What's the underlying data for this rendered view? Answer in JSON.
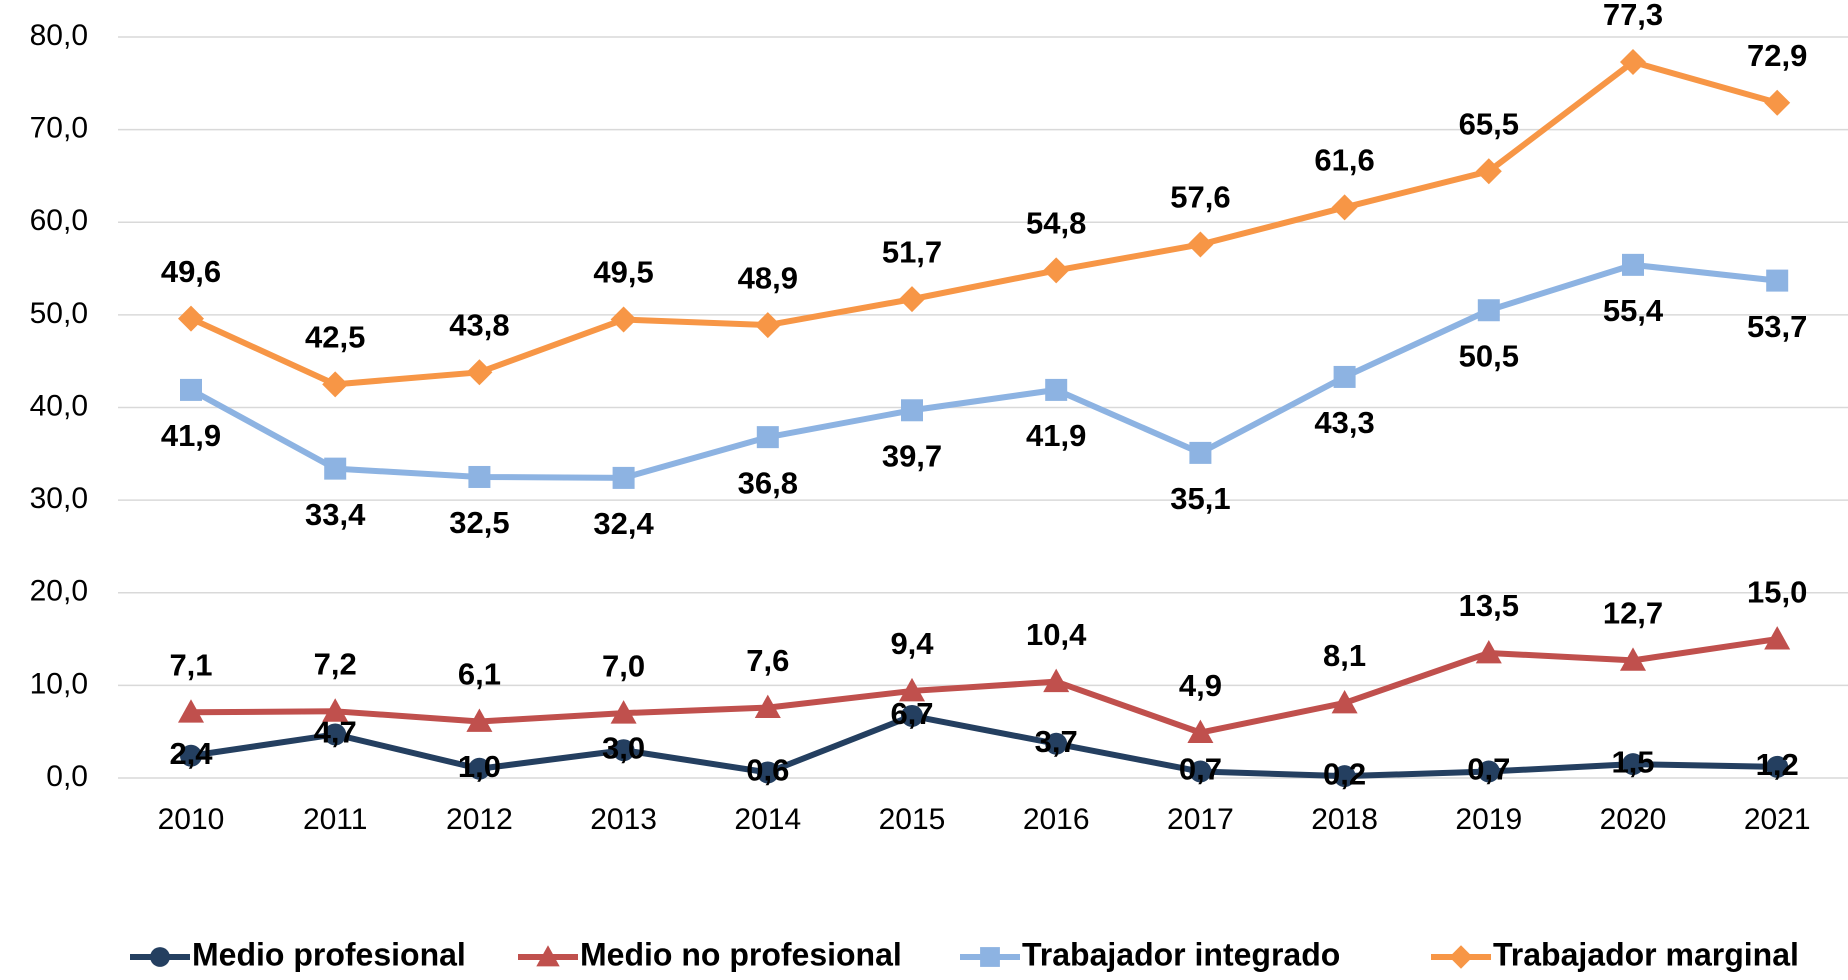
{
  "chart_data": {
    "type": "line",
    "categories": [
      "2010",
      "2011",
      "2012",
      "2013",
      "2014",
      "2015",
      "2016",
      "2017",
      "2018",
      "2019",
      "2020",
      "2021"
    ],
    "series": [
      {
        "name": "Medio profesional",
        "color": "#243f60",
        "marker": "circle",
        "values": [
          2.4,
          4.7,
          1.0,
          3.0,
          0.6,
          6.7,
          3.7,
          0.7,
          0.2,
          0.7,
          1.5,
          1.2
        ],
        "value_labels": [
          "2,4",
          "4,7",
          "1,0",
          "3,0",
          "0,6",
          "6,7",
          "3,7",
          "0,7",
          "0,2",
          "0,7",
          "1,5",
          "1,2"
        ]
      },
      {
        "name": "Medio no profesional",
        "color": "#c0504d",
        "marker": "triangle",
        "values": [
          7.1,
          7.2,
          6.1,
          7.0,
          7.6,
          9.4,
          10.4,
          4.9,
          8.1,
          13.5,
          12.7,
          15.0
        ],
        "value_labels": [
          "7,1",
          "7,2",
          "6,1",
          "7,0",
          "7,6",
          "9,4",
          "10,4",
          "4,9",
          "8,1",
          "13,5",
          "12,7",
          "15,0"
        ]
      },
      {
        "name": "Trabajador integrado",
        "color": "#8db3e2",
        "marker": "square",
        "values": [
          41.9,
          33.4,
          32.5,
          32.4,
          36.8,
          39.7,
          41.9,
          35.1,
          43.3,
          50.5,
          55.4,
          53.7
        ],
        "value_labels": [
          "41,9",
          "33,4",
          "32,5",
          "32,4",
          "36,8",
          "39,7",
          "41,9",
          "35,1",
          "43,3",
          "50,5",
          "55,4",
          "53,7"
        ]
      },
      {
        "name": "Trabajador marginal",
        "color": "#f79646",
        "marker": "diamond",
        "values": [
          49.6,
          42.5,
          43.8,
          49.5,
          48.9,
          51.7,
          54.8,
          57.6,
          61.6,
          65.5,
          77.3,
          72.9
        ],
        "value_labels": [
          "49,6",
          "42,5",
          "43,8",
          "49,5",
          "48,9",
          "51,7",
          "54,8",
          "57,6",
          "61,6",
          "65,5",
          "77,3",
          "72,9"
        ]
      }
    ],
    "ylim": [
      0,
      80
    ],
    "yticks": [
      {
        "value": 0,
        "label": "0,0"
      },
      {
        "value": 10,
        "label": "10,0"
      },
      {
        "value": 20,
        "label": "20,0"
      },
      {
        "value": 30,
        "label": "30,0"
      },
      {
        "value": 40,
        "label": "40,0"
      },
      {
        "value": 50,
        "label": "50,0"
      },
      {
        "value": 60,
        "label": "60,0"
      },
      {
        "value": 70,
        "label": "70,0"
      },
      {
        "value": 80,
        "label": "80,0"
      }
    ],
    "grid": true,
    "legend": "bottom"
  }
}
